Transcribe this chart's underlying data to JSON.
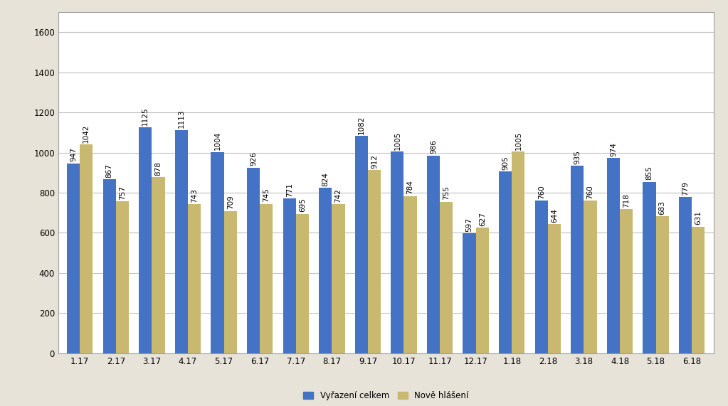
{
  "categories": [
    "1.17",
    "2.17",
    "3.17",
    "4.17",
    "5.17",
    "6.17",
    "7.17",
    "8.17",
    "9.17",
    "10.17",
    "11.17",
    "12.17",
    "1.18",
    "2.18",
    "3.18",
    "4.18",
    "5.18",
    "6.18"
  ],
  "vyrazeni": [
    947,
    867,
    1125,
    1113,
    1004,
    926,
    771,
    824,
    1082,
    1005,
    986,
    597,
    905,
    760,
    935,
    974,
    855,
    779
  ],
  "nove": [
    1042,
    757,
    878,
    743,
    709,
    745,
    695,
    742,
    912,
    784,
    755,
    627,
    1005,
    644,
    760,
    718,
    683,
    631
  ],
  "bar_color_vyrazeni": "#4472C4",
  "bar_color_nove": "#C8B870",
  "fig_background_color": "#E8E3D8",
  "plot_bg_color": "#FFFFFF",
  "ylim": [
    0,
    1700
  ],
  "yticks": [
    0,
    200,
    400,
    600,
    800,
    1000,
    1200,
    1400,
    1600
  ],
  "legend_vyrazeni": "Vyřazení celkem",
  "legend_nove": "Nově hlášení",
  "label_fontsize": 7.5,
  "tick_fontsize": 8.5,
  "legend_fontsize": 8.5,
  "bar_width": 0.36
}
